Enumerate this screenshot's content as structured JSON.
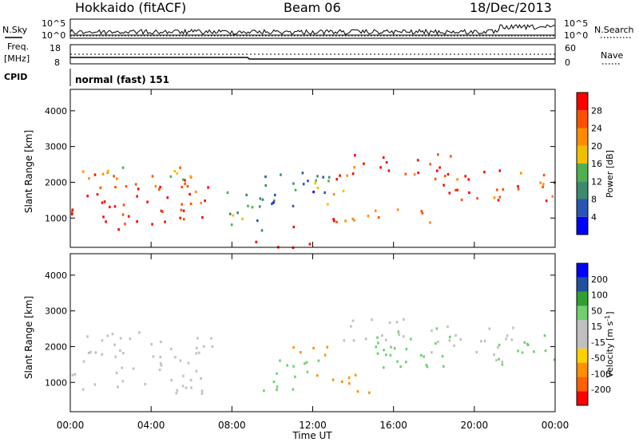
{
  "header": {
    "radar": "Hokkaido (fitACF)",
    "beam": "Beam 06",
    "date": "18/Dec/2013"
  },
  "noise_panel": {
    "left_label": "N.Sky",
    "right_label": "N.Search",
    "ticks_left": [
      "10^5",
      "10^0"
    ],
    "ticks_right": [
      "10^5",
      "10^0"
    ]
  },
  "freq_panel": {
    "left_label_1": "Freq.",
    "left_label_2": "[MHz]",
    "right_label": "Nave",
    "ticks_left": [
      "18",
      "8"
    ],
    "ticks_right": [
      "60",
      "0"
    ]
  },
  "cpid": {
    "label": "CPID",
    "value": "normal (fast) 151"
  },
  "colors": {
    "power_scale": [
      "#0000ff",
      "#2a55b4",
      "#3e8a6e",
      "#50b050",
      "#f0c000",
      "#ff8c00",
      "#ff5000",
      "#ff0000"
    ],
    "velocity_scale": [
      "#ff0000",
      "#ff6000",
      "#ff9000",
      "#ffd000",
      "#c0c0c0",
      "#c0c0c0",
      "#70d070",
      "#30a030",
      "#2050a0",
      "#0000ff"
    ],
    "ground_scatter": "#c0c0c0"
  },
  "chart_data": [
    {
      "type": "heatmap",
      "title": "",
      "xlabel": "Time UT",
      "ylabel": "Slant Range [km]",
      "x_ticks": [
        "00:00",
        "04:00",
        "08:00",
        "12:00",
        "16:00",
        "20:00",
        "00:00"
      ],
      "y_ticks": [
        "1000",
        "2000",
        "3000",
        "4000"
      ],
      "xlim_hours": [
        0,
        24
      ],
      "ylim_km": [
        180,
        4600
      ],
      "colorbar_label": "Power [dB]",
      "colorbar_ticks": [
        "4",
        "8",
        "12",
        "16",
        "20",
        "24",
        "28"
      ],
      "scatter_regions": [
        {
          "t0": 0.0,
          "t1": 6.8,
          "r0": 700,
          "r1": 2450,
          "level": 28
        },
        {
          "t0": 0.0,
          "t1": 7.2,
          "r0": 2100,
          "r1": 2450,
          "level": 18
        },
        {
          "t0": 7.0,
          "t1": 9.5,
          "r0": 650,
          "r1": 1800,
          "level": 12
        },
        {
          "t0": 8.0,
          "t1": 12.0,
          "r0": 200,
          "r1": 400,
          "level": 28
        },
        {
          "t0": 9.2,
          "t1": 12.8,
          "r0": 1300,
          "r1": 2400,
          "level": 8
        },
        {
          "t0": 10.5,
          "t1": 12.8,
          "r0": 1800,
          "r1": 2200,
          "level": 16
        },
        {
          "t0": 11.0,
          "t1": 13.5,
          "r0": 750,
          "r1": 1100,
          "level": 28
        },
        {
          "t0": 12.0,
          "t1": 13.5,
          "r0": 1400,
          "r1": 2000,
          "level": 18
        },
        {
          "t0": 13.0,
          "t1": 15.5,
          "r0": 2100,
          "r1": 2900,
          "level": 28
        },
        {
          "t0": 13.5,
          "t1": 19.0,
          "r0": 900,
          "r1": 1300,
          "level": 26
        },
        {
          "t0": 15.5,
          "t1": 19.0,
          "r0": 2200,
          "r1": 2900,
          "level": 28
        },
        {
          "t0": 18.0,
          "t1": 21.5,
          "r0": 1300,
          "r1": 2400,
          "level": 28
        },
        {
          "t0": 21.0,
          "t1": 24.0,
          "r0": 1500,
          "r1": 2400,
          "level": 28
        }
      ]
    },
    {
      "type": "heatmap",
      "title": "",
      "xlabel": "Time UT",
      "ylabel": "Slant Range [km]",
      "x_ticks": [
        "00:00",
        "04:00",
        "08:00",
        "12:00",
        "16:00",
        "20:00",
        "00:00"
      ],
      "y_ticks": [
        "1000",
        "2000",
        "3000",
        "4000"
      ],
      "xlim_hours": [
        0,
        24
      ],
      "ylim_km": [
        180,
        4600
      ],
      "colorbar_label": "Velocity [m s^-1]",
      "colorbar_ticks": [
        "200",
        "100",
        "50",
        "15",
        "-15",
        "-50",
        "-100",
        "-200"
      ],
      "scatter_regions": [
        {
          "t0": 0.0,
          "t1": 7.0,
          "r0": 700,
          "r1": 2450,
          "level": 0
        },
        {
          "t0": 9.5,
          "t1": 12.5,
          "r0": 800,
          "r1": 1800,
          "level": 40
        },
        {
          "t0": 10.8,
          "t1": 12.8,
          "r0": 1700,
          "r1": 2300,
          "level": -60
        },
        {
          "t0": 12.0,
          "t1": 15.0,
          "r0": 700,
          "r1": 1300,
          "level": -70
        },
        {
          "t0": 13.5,
          "t1": 17.5,
          "r0": 2200,
          "r1": 2900,
          "level": 0
        },
        {
          "t0": 15.0,
          "t1": 19.0,
          "r0": 1200,
          "r1": 2600,
          "level": 40
        },
        {
          "t0": 17.5,
          "t1": 22.0,
          "r0": 1600,
          "r1": 2600,
          "level": 0
        },
        {
          "t0": 21.0,
          "t1": 24.0,
          "r0": 1500,
          "r1": 2400,
          "level": 35
        }
      ]
    }
  ]
}
